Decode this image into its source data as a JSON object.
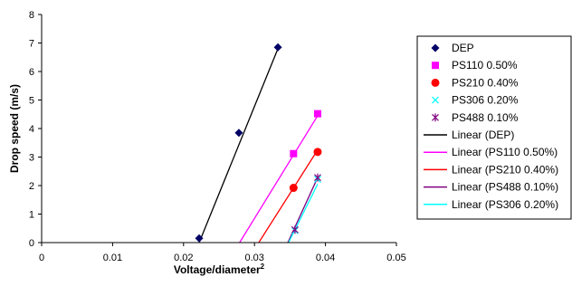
{
  "chart_data": {
    "type": "scatter",
    "title": "",
    "xlabel": "Voltage/diameter",
    "xlabel_superscript": "2",
    "ylabel": "Drop speed (m/s)",
    "xlim": [
      0,
      0.05
    ],
    "ylim": [
      0,
      8
    ],
    "x_ticks": [
      "0",
      "0.01",
      "0.02",
      "0.03",
      "0.04",
      "0.05"
    ],
    "y_ticks": [
      "0",
      "1",
      "2",
      "3",
      "4",
      "5",
      "6",
      "7",
      "8"
    ],
    "grid": false,
    "legend_position": "right",
    "series": [
      {
        "name": "DEP",
        "kind": "scatter",
        "marker": "diamond",
        "color": "#000066",
        "x": [
          0.0222,
          0.0278,
          0.0333
        ],
        "y": [
          0.15,
          3.85,
          6.85
        ]
      },
      {
        "name": "PS110 0.50%",
        "kind": "scatter",
        "marker": "square",
        "color": "#ff00ff",
        "x": [
          0.0355,
          0.0389
        ],
        "y": [
          3.12,
          4.52
        ]
      },
      {
        "name": "PS210 0.40%",
        "kind": "scatter",
        "marker": "circle",
        "color": "#ff0000",
        "x": [
          0.0355,
          0.0389
        ],
        "y": [
          1.92,
          3.18
        ]
      },
      {
        "name": "PS306 0.20%",
        "kind": "scatter",
        "marker": "x",
        "color": "#00ffff",
        "x": [
          0.0357,
          0.0389
        ],
        "y": [
          0.42,
          2.22
        ]
      },
      {
        "name": "PS488 0.10%",
        "kind": "scatter",
        "marker": "star",
        "color": "#800080",
        "x": [
          0.0357,
          0.0389
        ],
        "y": [
          0.45,
          2.28
        ]
      },
      {
        "name": "Linear (DEP)",
        "kind": "line",
        "color": "#000000",
        "x": [
          0.0222,
          0.0333
        ],
        "y": [
          0.0,
          6.8
        ]
      },
      {
        "name": "Linear (PS110 0.50%)",
        "kind": "line",
        "color": "#ff00ff",
        "x": [
          0.0279,
          0.0389
        ],
        "y": [
          0.0,
          4.45
        ]
      },
      {
        "name": "Linear (PS210 0.40%)",
        "kind": "line",
        "color": "#ff0000",
        "x": [
          0.0306,
          0.0389
        ],
        "y": [
          0.0,
          3.25
        ]
      },
      {
        "name": "Linear (PS488 0.10%)",
        "kind": "line",
        "color": "#800080",
        "x": [
          0.0347,
          0.0389
        ],
        "y": [
          0.0,
          2.28
        ]
      },
      {
        "name": "Linear (PS306 0.20%)",
        "kind": "line",
        "color": "#00ffff",
        "x": [
          0.0348,
          0.0389
        ],
        "y": [
          0.0,
          2.05
        ]
      }
    ]
  }
}
